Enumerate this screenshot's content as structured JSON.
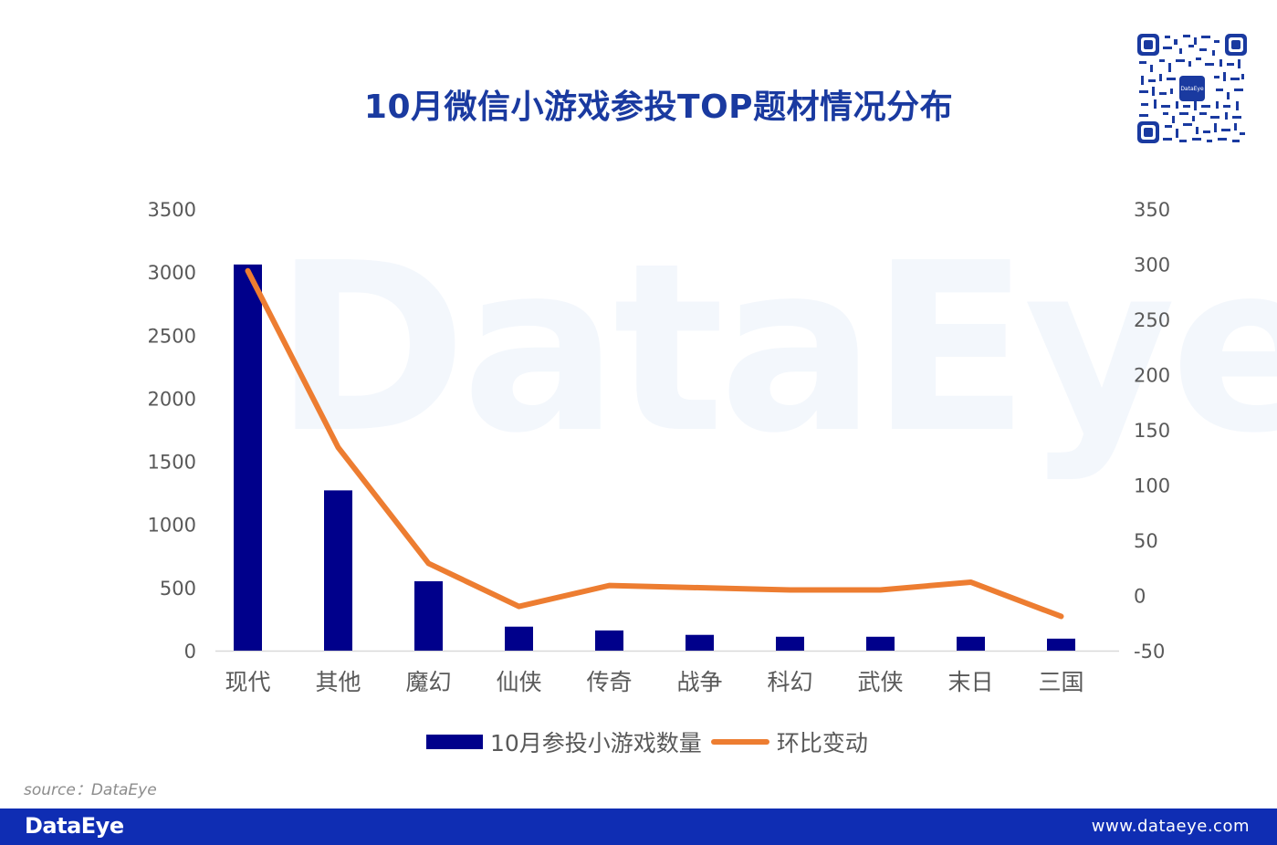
{
  "header": {
    "title": "10月微信小游戏参投TOP题材情况分布"
  },
  "watermark": "DataEye",
  "chart_data": {
    "type": "bar+line",
    "title": "10月微信小游戏参投TOP题材情况分布",
    "categories": [
      "现代",
      "其他",
      "魔幻",
      "仙侠",
      "传奇",
      "战争",
      "科幻",
      "武侠",
      "末日",
      "三国"
    ],
    "series": [
      {
        "name": "10月参投小游戏数量",
        "type": "bar",
        "axis": "left",
        "color": "#00008b",
        "values": [
          3060,
          1270,
          550,
          190,
          160,
          125,
          110,
          110,
          110,
          95
        ]
      },
      {
        "name": "环比变动",
        "type": "line",
        "axis": "right",
        "color": "#ed7d31",
        "values": [
          294,
          134,
          29,
          -10,
          9,
          7,
          5,
          5,
          12,
          -19
        ]
      }
    ],
    "left_axis": {
      "ylim": [
        0,
        3500
      ],
      "ticks": [
        "0",
        "500",
        "1000",
        "1500",
        "2000",
        "2500",
        "3000",
        "3500"
      ]
    },
    "right_axis": {
      "ylim": [
        -50,
        350
      ],
      "ticks": [
        "-50",
        "0",
        "50",
        "100",
        "150",
        "200",
        "250",
        "300",
        "350"
      ]
    },
    "xlabel": "",
    "ylabel": "",
    "grid": false,
    "legend_position": "bottom"
  },
  "legend": {
    "bar_label": "10月参投小游戏数量",
    "line_label": "环比变动"
  },
  "source": "source：DataEye",
  "footer": {
    "logo": "DataEye",
    "url": "www.dataeye.com"
  }
}
